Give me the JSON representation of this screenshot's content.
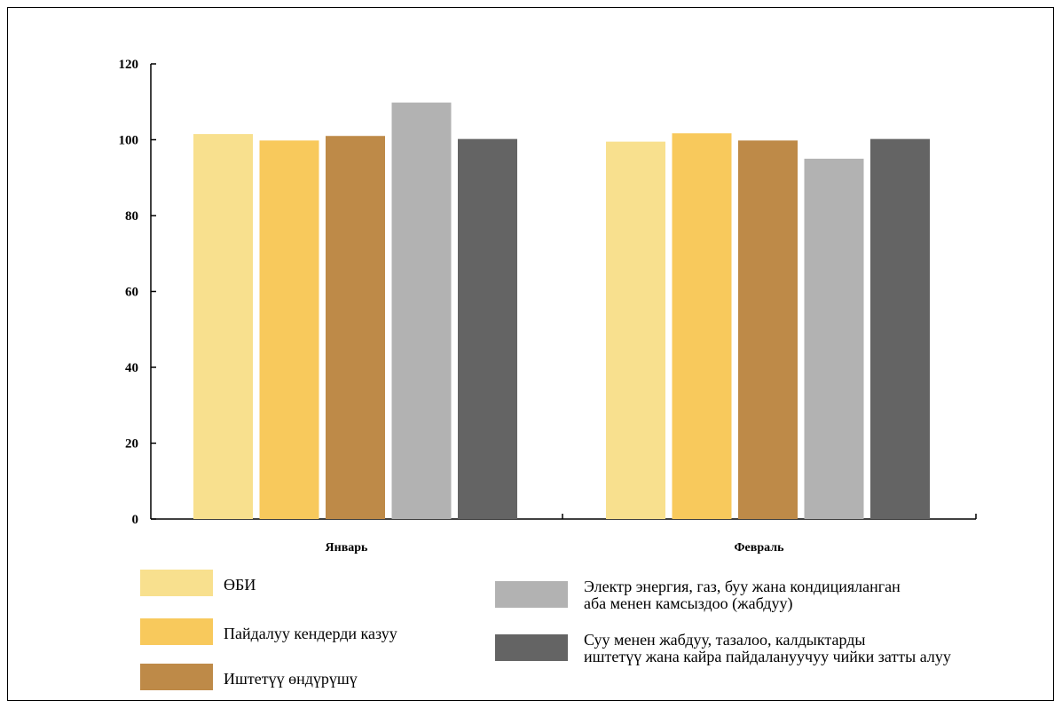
{
  "chart_data": {
    "type": "bar",
    "categories": [
      "Январь",
      "Февраль"
    ],
    "series": [
      {
        "name": "ӨБИ",
        "color": "#F8E08E",
        "values": [
          101.5,
          99.5
        ]
      },
      {
        "name": "Пайдалуу кендерди казуу",
        "color": "#F8C95C",
        "values": [
          99.8,
          101.7
        ]
      },
      {
        "name": "Иштетүү өндүрүшү",
        "color": "#BE8A48",
        "values": [
          101.0,
          99.8
        ]
      },
      {
        "name": "Электр энергия, газ, буу жана кондицияланган аба менен камсыздоо (жабдуу)",
        "color": "#B2B2B2",
        "values": [
          109.8,
          95.0
        ]
      },
      {
        "name": "Суу менен жабдуу, тазалоо, калдыктарды иштетүү жана кайра пайдалануучуу чийки затты алуу",
        "color": "#646464",
        "values": [
          100.2,
          100.2
        ]
      }
    ],
    "legend_lines": [
      [
        "ӨБИ"
      ],
      [
        "Пайдалуу кендерди казуу"
      ],
      [
        "Иштетүү өндүрүшү"
      ],
      [
        "Электр энергия, газ, буу жана кондицияланган",
        "аба менен камсыздоо (жабдуу)"
      ],
      [
        "Суу менен жабдуу, тазалоо, калдыктарды",
        "иштетүү жана кайра пайдалануучуу чийки затты алуу"
      ]
    ],
    "yticks": [
      0,
      20,
      40,
      60,
      80,
      100,
      120
    ],
    "ylim": [
      0,
      120
    ],
    "title": "",
    "xlabel": "",
    "ylabel": "",
    "grid": false,
    "legend_position": "bottom"
  }
}
